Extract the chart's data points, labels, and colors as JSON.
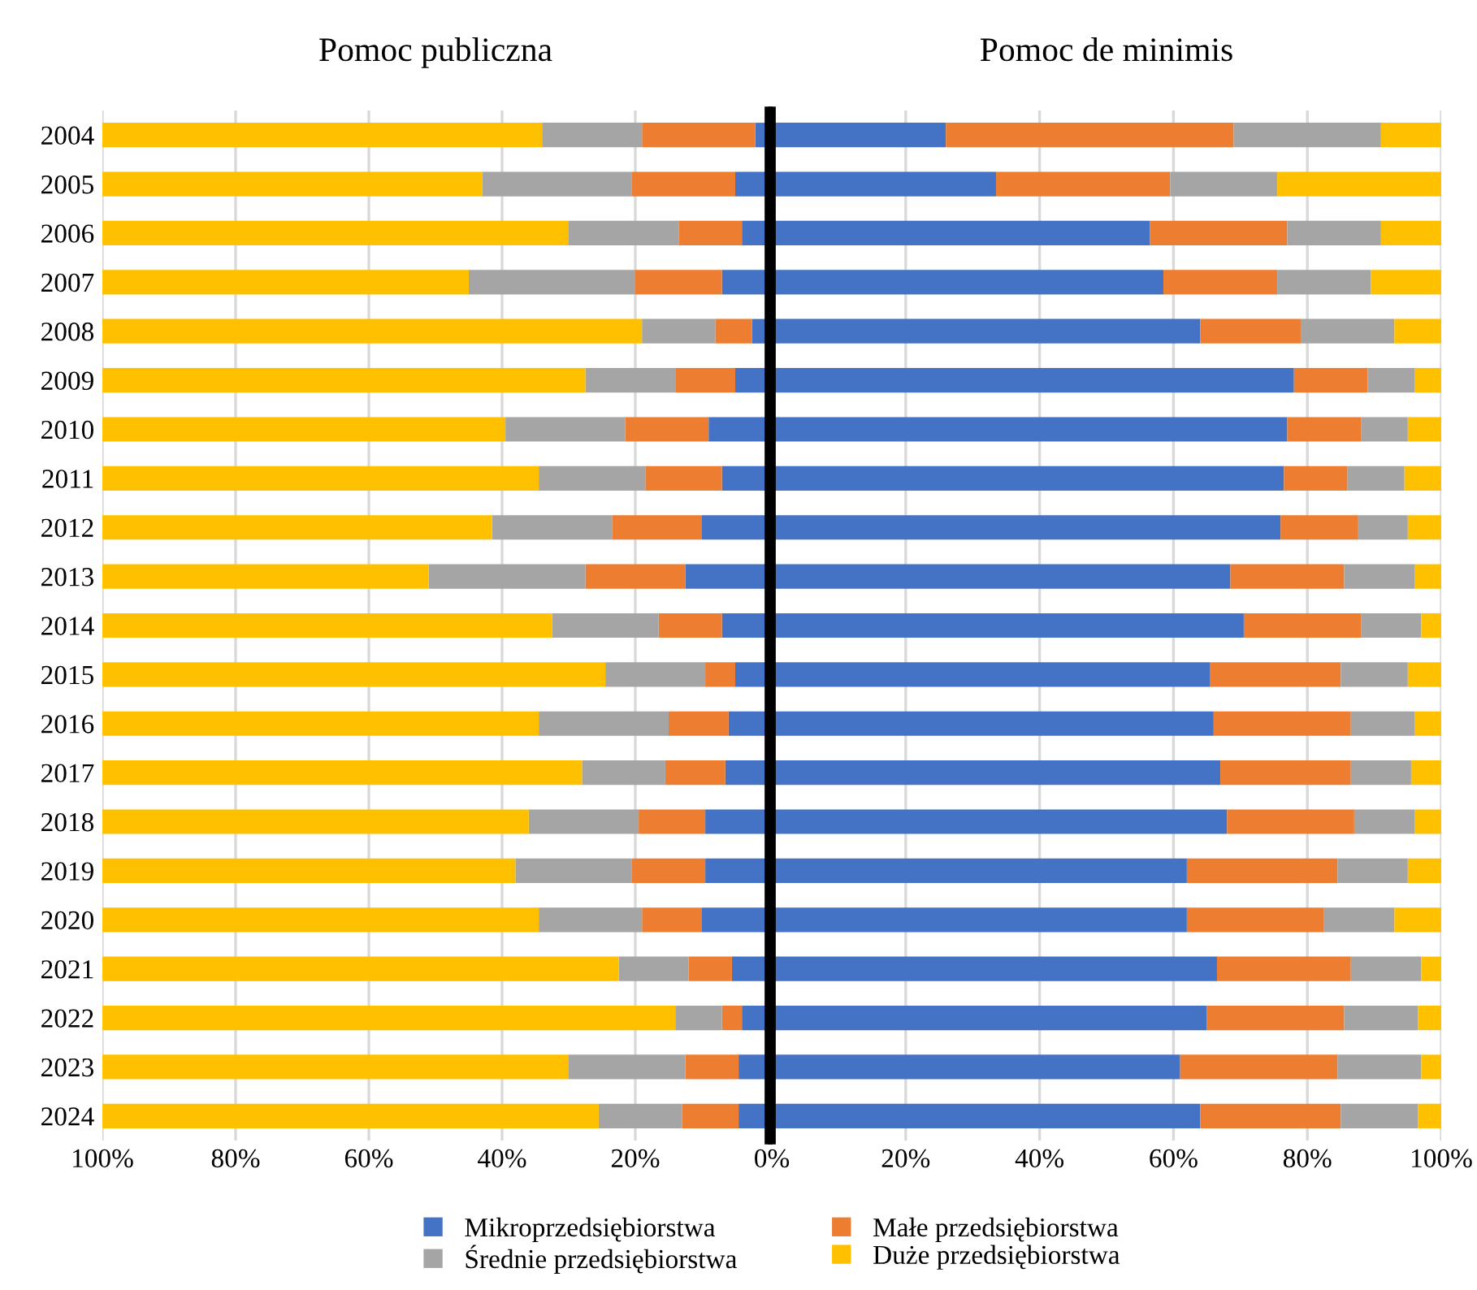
{
  "chart_data": [
    {
      "type": "bar",
      "orientation": "horizontal",
      "stacked": true,
      "title": "Pomoc publiczna",
      "categories": [
        "2004",
        "2005",
        "2006",
        "2007",
        "2008",
        "2009",
        "2010",
        "2011",
        "2012",
        "2013",
        "2014",
        "2015",
        "2016",
        "2017",
        "2018",
        "2019",
        "2020",
        "2021",
        "2022",
        "2023",
        "2024"
      ],
      "series": [
        {
          "name": "Mikroprzedsiębiorstwa",
          "color": "#4472c4",
          "values": [
            2,
            5,
            4,
            7,
            2.5,
            5,
            9,
            7,
            10,
            12.5,
            7,
            5,
            6,
            6.5,
            9.5,
            9.5,
            10,
            5.5,
            4,
            4.5,
            4.5
          ]
        },
        {
          "name": "Małe przedsiębiorstwa",
          "color": "#ed7d31",
          "values": [
            17,
            15.5,
            9.5,
            13,
            5.5,
            9,
            12.5,
            11.5,
            13.5,
            15,
            9.5,
            4.5,
            9,
            9,
            10,
            11,
            9,
            6.5,
            3,
            8,
            8.5
          ]
        },
        {
          "name": "Średnie przedsiębiorstwa",
          "color": "#a5a5a5",
          "values": [
            15,
            22.5,
            16.5,
            25,
            11,
            13.5,
            18,
            16,
            18,
            23.5,
            16,
            15,
            19.5,
            12.5,
            16.5,
            17.5,
            15.5,
            10.5,
            7,
            17.5,
            12.5
          ]
        },
        {
          "name": "Duże przedsiębiorstwa",
          "color": "#ffc000",
          "values": [
            66,
            57,
            70,
            55,
            81,
            72.5,
            60.5,
            65.5,
            58.5,
            49,
            67.5,
            75.5,
            65.5,
            72,
            64,
            62,
            65.5,
            77.5,
            86,
            70,
            74.5
          ]
        }
      ],
      "xlim": [
        100,
        0
      ],
      "xticks": [
        {
          "value": 100,
          "label": "100%"
        },
        {
          "value": 80,
          "label": "80%"
        },
        {
          "value": 60,
          "label": "60%"
        },
        {
          "value": 40,
          "label": "40%"
        },
        {
          "value": 20,
          "label": "20%"
        },
        {
          "value": 0,
          "label": null
        }
      ],
      "grid": "x",
      "legend": "bottom"
    },
    {
      "type": "bar",
      "orientation": "horizontal",
      "stacked": true,
      "title": "Pomoc de minimis",
      "categories": [
        "2004",
        "2005",
        "2006",
        "2007",
        "2008",
        "2009",
        "2010",
        "2011",
        "2012",
        "2013",
        "2014",
        "2015",
        "2016",
        "2017",
        "2018",
        "2019",
        "2020",
        "2021",
        "2022",
        "2023",
        "2024"
      ],
      "series": [
        {
          "color": "#4472c4",
          "values": [
            26,
            33.5,
            56.5,
            58.5,
            64,
            78,
            77,
            76.5,
            76,
            68.5,
            70.5,
            65.5,
            66,
            67,
            68,
            62,
            62,
            66.5,
            65,
            61,
            64
          ]
        },
        {
          "color": "#ed7d31",
          "values": [
            43,
            26,
            20.5,
            17,
            15,
            11,
            11,
            9.5,
            11.5,
            17,
            17.5,
            19.5,
            20.5,
            19.5,
            19,
            22.5,
            20.5,
            20,
            20.5,
            23.5,
            21
          ]
        },
        {
          "color": "#a5a5a5",
          "values": [
            22,
            16,
            14,
            14,
            14,
            7,
            7,
            8.5,
            7.5,
            10.5,
            9,
            10,
            9.5,
            9,
            9,
            10.5,
            10.5,
            10.5,
            11,
            12.5,
            11.5
          ]
        },
        {
          "color": "#ffc000",
          "values": [
            9,
            24.5,
            9,
            10.5,
            7,
            4,
            5,
            5.5,
            5,
            4,
            3,
            5,
            4,
            4.5,
            4,
            5,
            7,
            3,
            3.5,
            3,
            3.5
          ]
        }
      ],
      "xlim": [
        0,
        100
      ],
      "xticks": [
        {
          "value": 0,
          "label": "0%"
        },
        {
          "value": 20,
          "label": "20%"
        },
        {
          "value": 40,
          "label": "40%"
        },
        {
          "value": 60,
          "label": "60%"
        },
        {
          "value": 80,
          "label": "80%"
        },
        {
          "value": 100,
          "label": "100%"
        }
      ],
      "grid": "x",
      "tick_labels": "x"
    }
  ]
}
